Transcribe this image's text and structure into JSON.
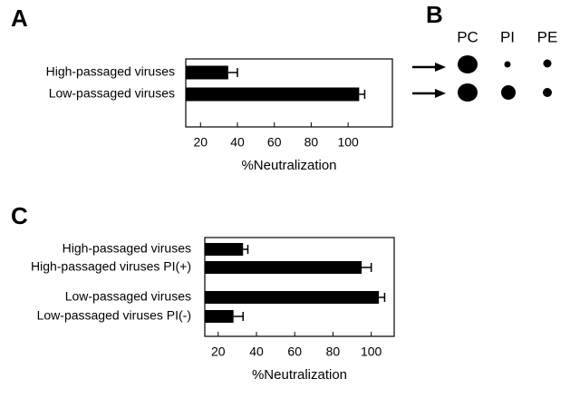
{
  "chart_data": [
    {
      "type": "bar",
      "orientation": "horizontal",
      "panel": "A",
      "categories": [
        "High-passaged viruses",
        "Low-passaged viruses"
      ],
      "values": [
        35,
        106
      ],
      "errors": [
        5,
        3
      ],
      "color": "#000000",
      "xlim": [
        12,
        124
      ],
      "xticks": [
        20,
        40,
        60,
        80,
        100
      ],
      "xlabel": "%Neutralization"
    },
    {
      "type": "bar",
      "orientation": "horizontal",
      "panel": "C",
      "categories": [
        "High-passaged viruses",
        "High-passaged viruses PI(+)",
        "Low-passaged viruses",
        "Low-passaged viruses PI(-)"
      ],
      "values": [
        33,
        95,
        104,
        28
      ],
      "errors": [
        2.5,
        5,
        3,
        5
      ],
      "color": "#000000",
      "xlim": [
        13,
        112
      ],
      "xticks": [
        20,
        40,
        60,
        80,
        100
      ],
      "xlabel": "%Neutralization"
    }
  ],
  "dot_blot": {
    "panel": "B",
    "columns": [
      "PC",
      "PI",
      "PE"
    ]
  }
}
